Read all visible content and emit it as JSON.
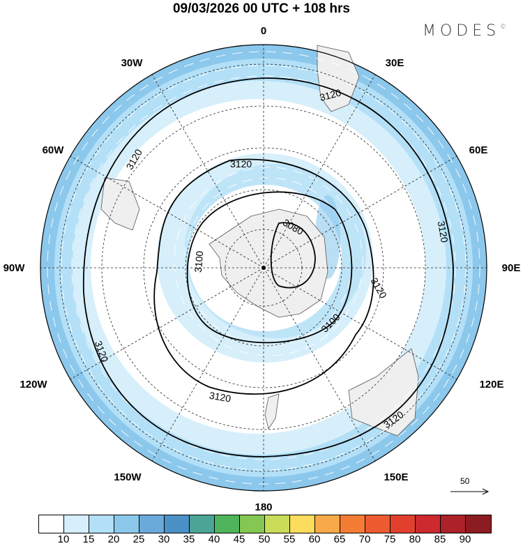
{
  "title": "09/03/2026  00 UTC  + 108 hrs",
  "logo": "MODES",
  "logo_mark": "©",
  "longitude_labels": [
    "0",
    "30E",
    "60E",
    "90E",
    "120E",
    "150E",
    "180",
    "150W",
    "120W",
    "90W",
    "60W",
    "30W"
  ],
  "contour_labels": [
    "3120",
    "3120",
    "3120",
    "3120",
    "3120",
    "3120",
    "3120",
    "3120",
    "3100",
    "3100",
    "3080"
  ],
  "reference_vector": "50",
  "colorbar": {
    "colors": [
      "#ffffff",
      "#d6effb",
      "#b3e0f7",
      "#8cc8ec",
      "#6aaadb",
      "#4b90c6",
      "#4aa596",
      "#4fb55c",
      "#84c752",
      "#c9dc58",
      "#fcdc5c",
      "#f9aa48",
      "#f57c34",
      "#ec5c30",
      "#e1402f",
      "#cc2a2f",
      "#ad2128",
      "#8c1c22"
    ],
    "ticks": [
      "10",
      "15",
      "20",
      "25",
      "30",
      "35",
      "40",
      "45",
      "50",
      "55",
      "60",
      "65",
      "70",
      "75",
      "80",
      "85",
      "90"
    ]
  }
}
